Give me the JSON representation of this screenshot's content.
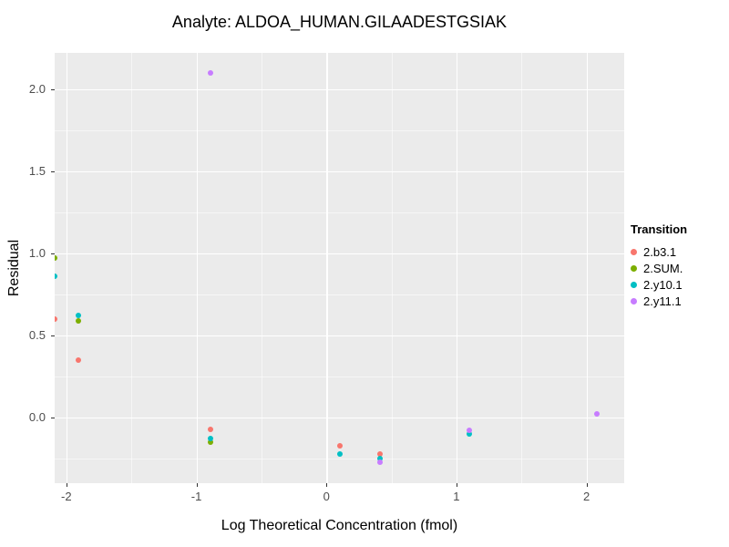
{
  "title": "Analyte: ALDOA_HUMAN.GILAADESTGSIAK",
  "chart_data": {
    "type": "scatter",
    "title": "Analyte: ALDOA_HUMAN.GILAADESTGSIAK",
    "xlabel": "Log Theoretical Concentration (fmol)",
    "ylabel": "Residual",
    "xlim": [
      -2.09,
      2.29
    ],
    "ylim": [
      -0.4,
      2.22
    ],
    "grid": true,
    "panel_background": "#EBEBEB",
    "x_ticks": [
      {
        "value": -2,
        "label": "-2"
      },
      {
        "value": -1,
        "label": "-1"
      },
      {
        "value": 0,
        "label": "0"
      },
      {
        "value": 1,
        "label": "1"
      },
      {
        "value": 2,
        "label": "2"
      }
    ],
    "y_ticks": [
      {
        "value": 0.0,
        "label": "0.0"
      },
      {
        "value": 0.5,
        "label": "0.5"
      },
      {
        "value": 1.0,
        "label": "1.0"
      },
      {
        "value": 1.5,
        "label": "1.5"
      },
      {
        "value": 2.0,
        "label": "2.0"
      }
    ],
    "x_minor_ticks": [
      -1.5,
      -0.5,
      0.5,
      1.5
    ],
    "y_minor_ticks": [
      -0.25,
      0.25,
      0.75,
      1.25,
      1.75
    ],
    "legend_title": "Transition",
    "legend_position": "right",
    "series": [
      {
        "name": "2.b3.1",
        "color": "#F8766D",
        "points": [
          [
            -2.09,
            0.6
          ],
          [
            -1.91,
            0.35
          ],
          [
            -0.89,
            -0.07
          ],
          [
            0.1,
            -0.17
          ],
          [
            0.41,
            -0.22
          ]
        ]
      },
      {
        "name": "2.SUM.",
        "color": "#7CAE00",
        "points": [
          [
            -2.09,
            0.97
          ],
          [
            -1.91,
            0.59
          ],
          [
            -0.89,
            -0.15
          ]
        ]
      },
      {
        "name": "2.y10.1",
        "color": "#00BFC4",
        "points": [
          [
            -2.09,
            0.86
          ],
          [
            -1.91,
            0.62
          ],
          [
            -0.89,
            -0.13
          ],
          [
            0.1,
            -0.22
          ],
          [
            0.41,
            -0.25
          ],
          [
            1.1,
            -0.1
          ]
        ]
      },
      {
        "name": "2.y11.1",
        "color": "#C77CFF",
        "points": [
          [
            -0.89,
            2.1
          ],
          [
            0.41,
            -0.27
          ],
          [
            1.1,
            -0.08
          ],
          [
            2.08,
            0.02
          ]
        ]
      }
    ]
  }
}
